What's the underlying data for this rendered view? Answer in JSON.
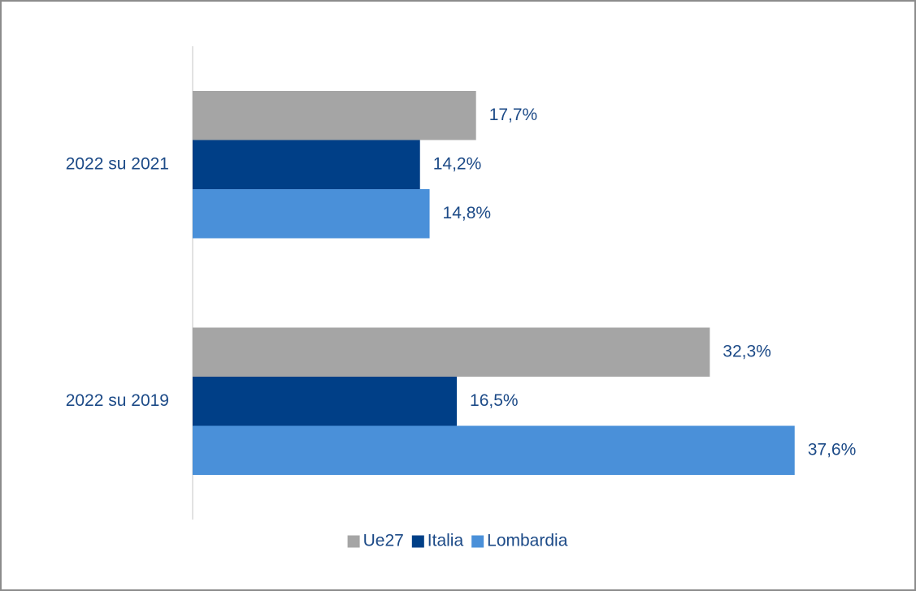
{
  "chart_data": {
    "type": "bar",
    "orientation": "horizontal",
    "categories": [
      "2022 su 2021",
      "2022 su 2019"
    ],
    "series": [
      {
        "name": "Ue27",
        "color": "#a5a5a5",
        "values": [
          17.7,
          32.3
        ],
        "value_labels": [
          "17,7%",
          "32,3%"
        ]
      },
      {
        "name": "Italia",
        "color": "#003f87",
        "values": [
          14.2,
          16.5
        ],
        "value_labels": [
          "14,2%",
          "16,5%"
        ]
      },
      {
        "name": "Lombardia",
        "color": "#4a90d9",
        "values": [
          14.8,
          37.6
        ],
        "value_labels": [
          "14,8%",
          "37,6%"
        ]
      }
    ],
    "xlim": [
      0,
      40
    ],
    "legend": "bottom"
  }
}
